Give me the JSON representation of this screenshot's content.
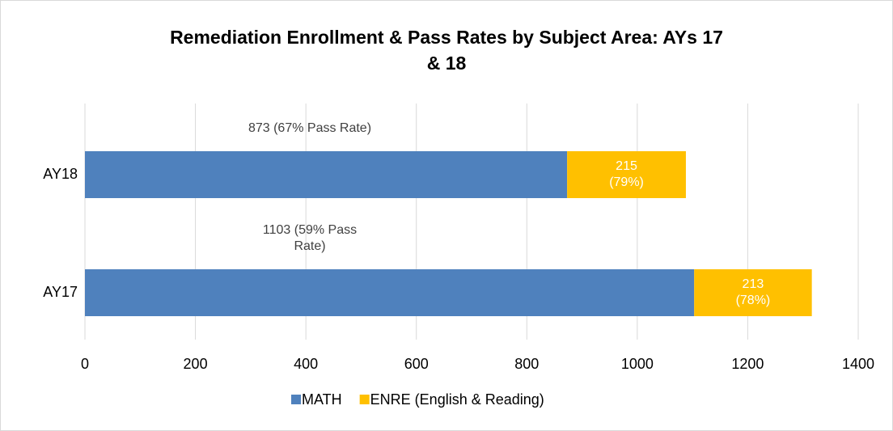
{
  "chart_data": {
    "type": "stacked-barh",
    "title": "Remediation Enrollment & Pass Rates by Subject Area: AYs 17 & 18",
    "categories": [
      "AY18",
      "AY17"
    ],
    "series": [
      {
        "name": "MATH",
        "color": "#4f81bd",
        "values": [
          873,
          1103
        ],
        "value_labels": [
          "873 (67% Pass Rate)",
          "1103 (59% Pass Rate)"
        ]
      },
      {
        "name": "ENRE (English & Reading)",
        "color": "#ffc000",
        "values": [
          215,
          213
        ],
        "value_labels": [
          "215 (79%)",
          "213 (78%)"
        ]
      }
    ],
    "xlim": [
      0,
      1400
    ],
    "xticks": [
      0,
      200,
      400,
      600,
      800,
      1000,
      1200,
      1400
    ],
    "grid": true,
    "legend": "bottom"
  }
}
